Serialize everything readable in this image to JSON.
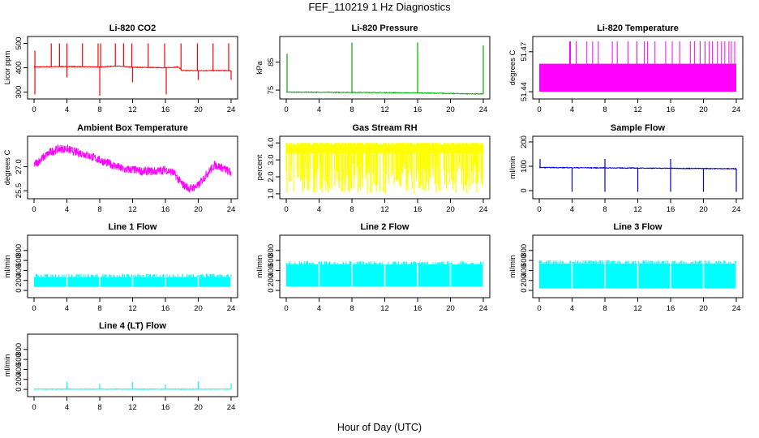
{
  "title": "FEF_110219  1 Hz Diagnostics",
  "xlabel": "Hour of Day (UTC)",
  "chart_data": [
    {
      "type": "line",
      "title": "Li-820 CO2",
      "ylabel": "Licor ppm",
      "color": "#ff0000",
      "xlim": [
        0,
        24
      ],
      "ylim": [
        285,
        515
      ],
      "xticks": [
        0,
        4,
        8,
        12,
        16,
        20,
        24
      ],
      "yticks": [
        300,
        400,
        500
      ],
      "baseline": [
        [
          0,
          403
        ],
        [
          4,
          405
        ],
        [
          8,
          403
        ],
        [
          10,
          407
        ],
        [
          12,
          402
        ],
        [
          16,
          400
        ],
        [
          17.6,
          403
        ],
        [
          18,
          388
        ],
        [
          20,
          388
        ],
        [
          23.8,
          388
        ]
      ],
      "spikes_up": [
        [
          0.1,
          470
        ],
        [
          2.1,
          500
        ],
        [
          3.1,
          500
        ],
        [
          4.0,
          500
        ],
        [
          5.9,
          500
        ],
        [
          7.8,
          500
        ],
        [
          8.1,
          500
        ],
        [
          9.9,
          500
        ],
        [
          10.9,
          500
        ],
        [
          11.9,
          500
        ],
        [
          13.9,
          500
        ],
        [
          15.9,
          500
        ],
        [
          17.9,
          500
        ],
        [
          19.9,
          500
        ],
        [
          21.8,
          500
        ],
        [
          23.7,
          500
        ]
      ],
      "spikes_down": [
        [
          0.1,
          290
        ],
        [
          4.0,
          360
        ],
        [
          8.0,
          285
        ],
        [
          12.0,
          340
        ],
        [
          16.1,
          290
        ],
        [
          20.0,
          350
        ],
        [
          24.0,
          350
        ]
      ]
    },
    {
      "type": "line",
      "title": "Li-820 Pressure",
      "ylabel": "kPa",
      "color": "#00b000",
      "xlim": [
        0,
        24
      ],
      "ylim": [
        73,
        93
      ],
      "xticks": [
        0,
        4,
        8,
        12,
        16,
        20,
        24
      ],
      "yticks": [
        75,
        85
      ],
      "baseline": [
        [
          0,
          74.3
        ],
        [
          8,
          74.2
        ],
        [
          16,
          74.0
        ],
        [
          20,
          73.8
        ],
        [
          24,
          73.6
        ]
      ],
      "spikes_up": [
        [
          0.1,
          88
        ],
        [
          8.0,
          92
        ],
        [
          16.0,
          92
        ],
        [
          24.0,
          91
        ]
      ]
    },
    {
      "type": "area",
      "title": "Li-820 Temperature",
      "ylabel": "degrees C",
      "color": "#ff00ff",
      "xlim": [
        0,
        24
      ],
      "ylim": [
        51.437,
        51.479
      ],
      "xticks": [
        0,
        4,
        8,
        12,
        16,
        20,
        24
      ],
      "yticks": [
        51.44,
        51.47
      ],
      "band": [
        51.44,
        51.461
      ],
      "spikes_up": [
        3.7,
        3.8,
        4.5,
        5.8,
        6.5,
        7.2,
        8.9,
        9.5,
        10.8,
        11.9,
        12.8,
        13.2,
        14.1,
        15.4,
        16.2,
        17.1,
        18.4,
        18.9,
        19.6,
        20.2,
        20.7,
        21.1,
        21.7,
        22.2,
        22.6,
        23.1,
        23.4,
        23.8
      ]
    },
    {
      "type": "line",
      "title": "Ambient Box Temperature",
      "ylabel": "degrees C",
      "color": "#ff00ff",
      "xlim": [
        0,
        24
      ],
      "ylim": [
        25.2,
        28.7
      ],
      "xticks": [
        0,
        4,
        8,
        12,
        16,
        20,
        24
      ],
      "yticks": [
        25.5,
        27.0
      ],
      "series": [
        [
          0,
          27.2
        ],
        [
          1,
          27.6
        ],
        [
          2,
          28.0
        ],
        [
          3,
          28.2
        ],
        [
          4,
          28.2
        ],
        [
          5,
          28.0
        ],
        [
          6,
          27.9
        ],
        [
          7,
          27.7
        ],
        [
          8,
          27.5
        ],
        [
          9,
          27.3
        ],
        [
          10,
          27.1
        ],
        [
          11,
          26.9
        ],
        [
          12,
          26.9
        ],
        [
          13,
          26.8
        ],
        [
          14,
          26.8
        ],
        [
          15,
          26.8
        ],
        [
          16,
          26.9
        ],
        [
          17,
          26.7
        ],
        [
          18,
          26.0
        ],
        [
          19,
          25.7
        ],
        [
          20,
          25.9
        ],
        [
          21,
          26.6
        ],
        [
          22,
          27.2
        ],
        [
          23,
          27.0
        ],
        [
          24,
          26.7
        ]
      ],
      "amplitude": 0.55
    },
    {
      "type": "area",
      "title": "Gas Stream RH",
      "ylabel": "percent",
      "color": "#ffff00",
      "xlim": [
        0,
        24
      ],
      "ylim": [
        0.9,
        4.2
      ],
      "xticks": [
        0,
        4,
        8,
        12,
        16,
        20,
        24
      ],
      "yticks": [
        1.0,
        2.0,
        3.0,
        4.0
      ],
      "band": [
        3.4,
        3.9
      ],
      "dip_min": 1.0
    },
    {
      "type": "line",
      "title": "Sample Flow",
      "ylabel": "ml/min",
      "color": "#0000dd",
      "xlim": [
        0,
        24
      ],
      "ylim": [
        -20,
        210
      ],
      "xticks": [
        0,
        4,
        8,
        12,
        16,
        20,
        24
      ],
      "yticks": [
        0,
        100,
        200
      ],
      "baseline": [
        [
          0,
          95
        ],
        [
          24,
          90
        ]
      ],
      "spikes_up": [
        [
          0.1,
          130
        ],
        [
          8.0,
          130
        ],
        [
          16.0,
          130
        ]
      ],
      "spikes_down": [
        [
          4.0,
          -5
        ],
        [
          8.0,
          -5
        ],
        [
          12.0,
          -5
        ],
        [
          16.0,
          -5
        ],
        [
          20.0,
          -5
        ],
        [
          24.0,
          -5
        ]
      ]
    },
    {
      "type": "area",
      "title": "Line 1 Flow",
      "ylabel": "ml/min",
      "color": "#00ffff",
      "xlim": [
        0,
        24
      ],
      "ylim": [
        -80,
        1040
      ],
      "xticks": [
        0,
        4,
        8,
        12,
        16,
        20,
        24
      ],
      "yticks": [
        0,
        200,
        400,
        600,
        800
      ],
      "band": [
        70,
        270
      ],
      "gaps": [
        4.0,
        8.0,
        12.0,
        16.0,
        20.0
      ]
    },
    {
      "type": "area",
      "title": "Line 2 Flow",
      "ylabel": "ml/min",
      "color": "#00ffff",
      "xlim": [
        0,
        24
      ],
      "ylim": [
        -80,
        1040
      ],
      "xticks": [
        0,
        4,
        8,
        12,
        16,
        20,
        24
      ],
      "yticks": [
        0,
        200,
        400,
        600,
        800
      ],
      "band": [
        80,
        520
      ],
      "gaps": [
        4.0,
        8.0,
        12.0,
        16.0,
        20.0
      ]
    },
    {
      "type": "area",
      "title": "Line 3 Flow",
      "ylabel": "ml/min",
      "color": "#00ffff",
      "xlim": [
        0,
        24
      ],
      "ylim": [
        -80,
        1040
      ],
      "xticks": [
        0,
        4,
        8,
        12,
        16,
        20,
        24
      ],
      "yticks": [
        0,
        200,
        400,
        600,
        800
      ],
      "band": [
        40,
        540
      ],
      "gaps": [
        4.0,
        8.0,
        12.0,
        16.0,
        20.0
      ]
    },
    {
      "type": "line",
      "title": "Line 4 (LT) Flow",
      "ylabel": "ml/min",
      "color": "#00ffff",
      "xlim": [
        0,
        24
      ],
      "ylim": [
        -80,
        1040
      ],
      "xticks": [
        0,
        4,
        8,
        12,
        16,
        20,
        24
      ],
      "yticks": [
        0,
        200,
        400,
        600,
        800
      ],
      "baseline": [
        [
          0,
          5
        ],
        [
          24,
          5
        ]
      ],
      "spikes_up": [
        [
          4.0,
          150
        ],
        [
          8.0,
          110
        ],
        [
          12.0,
          150
        ],
        [
          16.0,
          100
        ],
        [
          20.0,
          160
        ],
        [
          24.0,
          120
        ]
      ]
    }
  ]
}
